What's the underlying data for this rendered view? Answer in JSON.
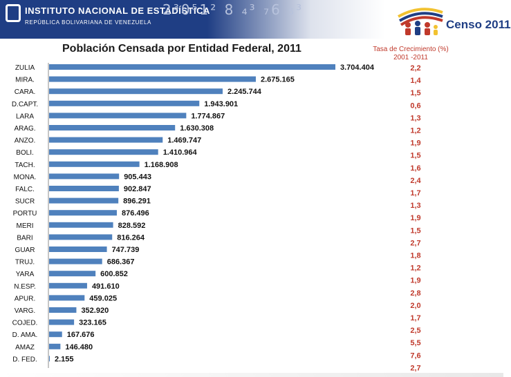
{
  "header": {
    "institution_name": "INSTITUTO NACIONAL DE ESTADÍSTICA",
    "institution_country": "REPÚBLICA BOLIVARIANA DE VENEZUELA",
    "decorative_numbers": "2³0⁵1² 8 ₄³ ₇6 ₅³",
    "census_label": "Censo 2011",
    "colors": {
      "banner": "#1f3e84",
      "bar": "#4f81bd",
      "growth": "#c0392b"
    }
  },
  "chart_data": {
    "type": "bar",
    "orientation": "horizontal",
    "title": "Población Censada por Entidad Federal, 2011",
    "categories": [
      "ZULIA",
      "MIRA.",
      "CARA.",
      "D.CAPT.",
      "LARA",
      "ARAG.",
      "ANZO.",
      "BOLI.",
      "TACH.",
      "MONA.",
      "FALC.",
      "SUCR",
      "PORTU",
      "MERI",
      "BARI",
      "GUAR",
      "TRUJ.",
      "YARA",
      "N.ESP.",
      "APUR.",
      "VARG.",
      "COJED.",
      "D. AMA.",
      "AMAZ",
      "D. FED."
    ],
    "values": [
      3704404,
      2675165,
      2245744,
      1943901,
      1774867,
      1630308,
      1469747,
      1410964,
      1168908,
      905443,
      902847,
      896291,
      876496,
      828592,
      816264,
      747739,
      686367,
      600852,
      491610,
      459025,
      352920,
      323165,
      167676,
      146480,
      2155
    ],
    "value_labels": [
      "3.704.404",
      "2.675.165",
      "2.245.744",
      "1.943.901",
      "1.774.867",
      "1.630.308",
      "1.469.747",
      "1.410.964",
      "1.168.908",
      "905.443",
      "902.847",
      "896.291",
      "876.496",
      "828.592",
      "816.264",
      "747.739",
      "686.367",
      "600.852",
      "491.610",
      "459.025",
      "352.920",
      "323.165",
      "167.676",
      "146.480",
      "2.155"
    ],
    "growth_title_line1": "Tasa de Crecimiento (%)",
    "growth_title_line2": "2001 -2011",
    "growth_rates": [
      "2,2",
      "1,4",
      "1,5",
      "0,6",
      "1,3",
      "1,2",
      "1,9",
      "1,5",
      "1,6",
      "2,4",
      "1,7",
      "1,3",
      "1,9",
      "1,5",
      "2,7",
      "1,8",
      "1,2",
      "1,9",
      "2,8",
      "2,0",
      "1,7",
      "2,5",
      "5,5",
      "7,6",
      "2,7"
    ],
    "xlim": [
      0,
      3704404
    ],
    "grid": false
  }
}
